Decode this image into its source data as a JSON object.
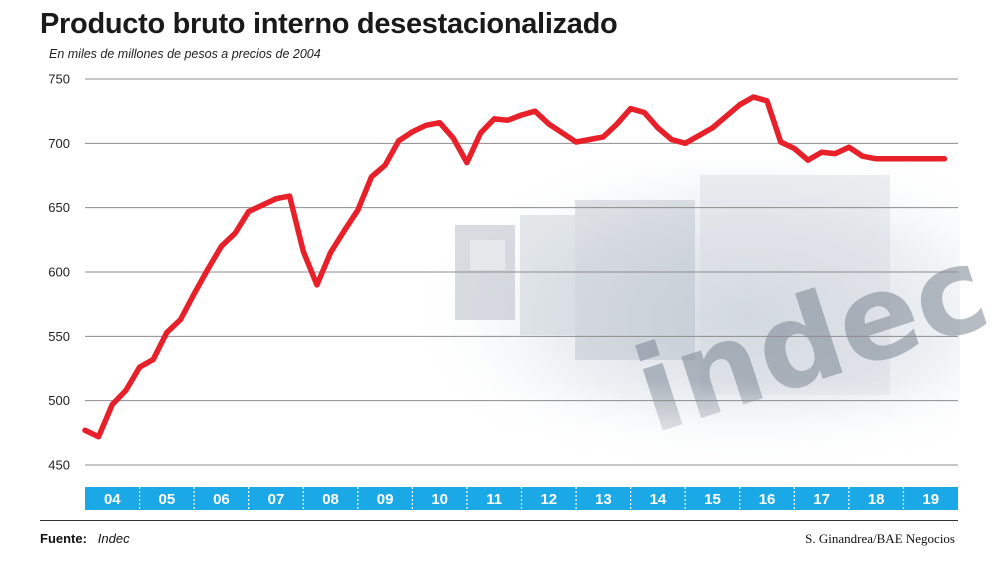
{
  "chart_data": {
    "type": "line",
    "title": "Producto bruto interno desestacionalizado",
    "subtitle": "En miles de millones de pesos a precios de 2004",
    "ylim": [
      450,
      750
    ],
    "y_ticks": [
      "450",
      "500",
      "550",
      "600",
      "650",
      "700",
      "750"
    ],
    "categories": [
      "04",
      "05",
      "06",
      "07",
      "08",
      "09",
      "10",
      "11",
      "12",
      "13",
      "14",
      "15",
      "16",
      "17",
      "18",
      "19"
    ],
    "grid": true,
    "series": [
      {
        "color": "#e8202a",
        "x": [
          2004.0,
          2004.25,
          2004.5,
          2004.75,
          2005.0,
          2005.25,
          2005.5,
          2005.75,
          2006.0,
          2006.25,
          2006.5,
          2006.75,
          2007.0,
          2007.25,
          2007.5,
          2007.75,
          2008.0,
          2008.25,
          2008.5,
          2008.75,
          2009.0,
          2009.25,
          2009.5,
          2009.75,
          2010.0,
          2010.25,
          2010.5,
          2010.75,
          2011.0,
          2011.25,
          2011.5,
          2011.75,
          2012.0,
          2012.25,
          2012.5,
          2012.75,
          2013.0,
          2013.25,
          2013.5,
          2013.75,
          2014.0,
          2014.25,
          2014.5,
          2014.75,
          2015.0,
          2015.25,
          2015.5,
          2015.75,
          2016.0,
          2016.25,
          2016.5,
          2016.75,
          2017.0,
          2017.25,
          2017.5,
          2017.75,
          2018.0,
          2018.25,
          2018.5,
          2018.75,
          2019.0,
          2019.25,
          2019.5,
          2019.75
        ],
        "values": [
          477,
          472,
          497,
          508,
          526,
          532,
          553,
          563,
          583,
          602,
          620,
          630,
          647,
          652,
          657,
          659,
          616,
          590,
          615,
          632,
          648,
          674,
          683,
          702,
          709,
          714,
          716,
          704,
          685,
          708,
          719,
          718,
          722,
          725,
          715,
          708,
          701,
          703,
          705,
          715,
          727,
          724,
          712,
          703,
          700,
          706,
          712,
          721,
          730,
          736,
          733,
          701,
          696,
          687,
          693,
          692,
          697,
          690,
          688,
          688,
          688,
          688,
          688,
          688
        ]
      }
    ]
  },
  "source": {
    "label": "Fuente:",
    "value": "Indec"
  },
  "credit": "S. Ginandrea/BAE Negocios",
  "background_photo": {
    "lettering": "indec"
  }
}
